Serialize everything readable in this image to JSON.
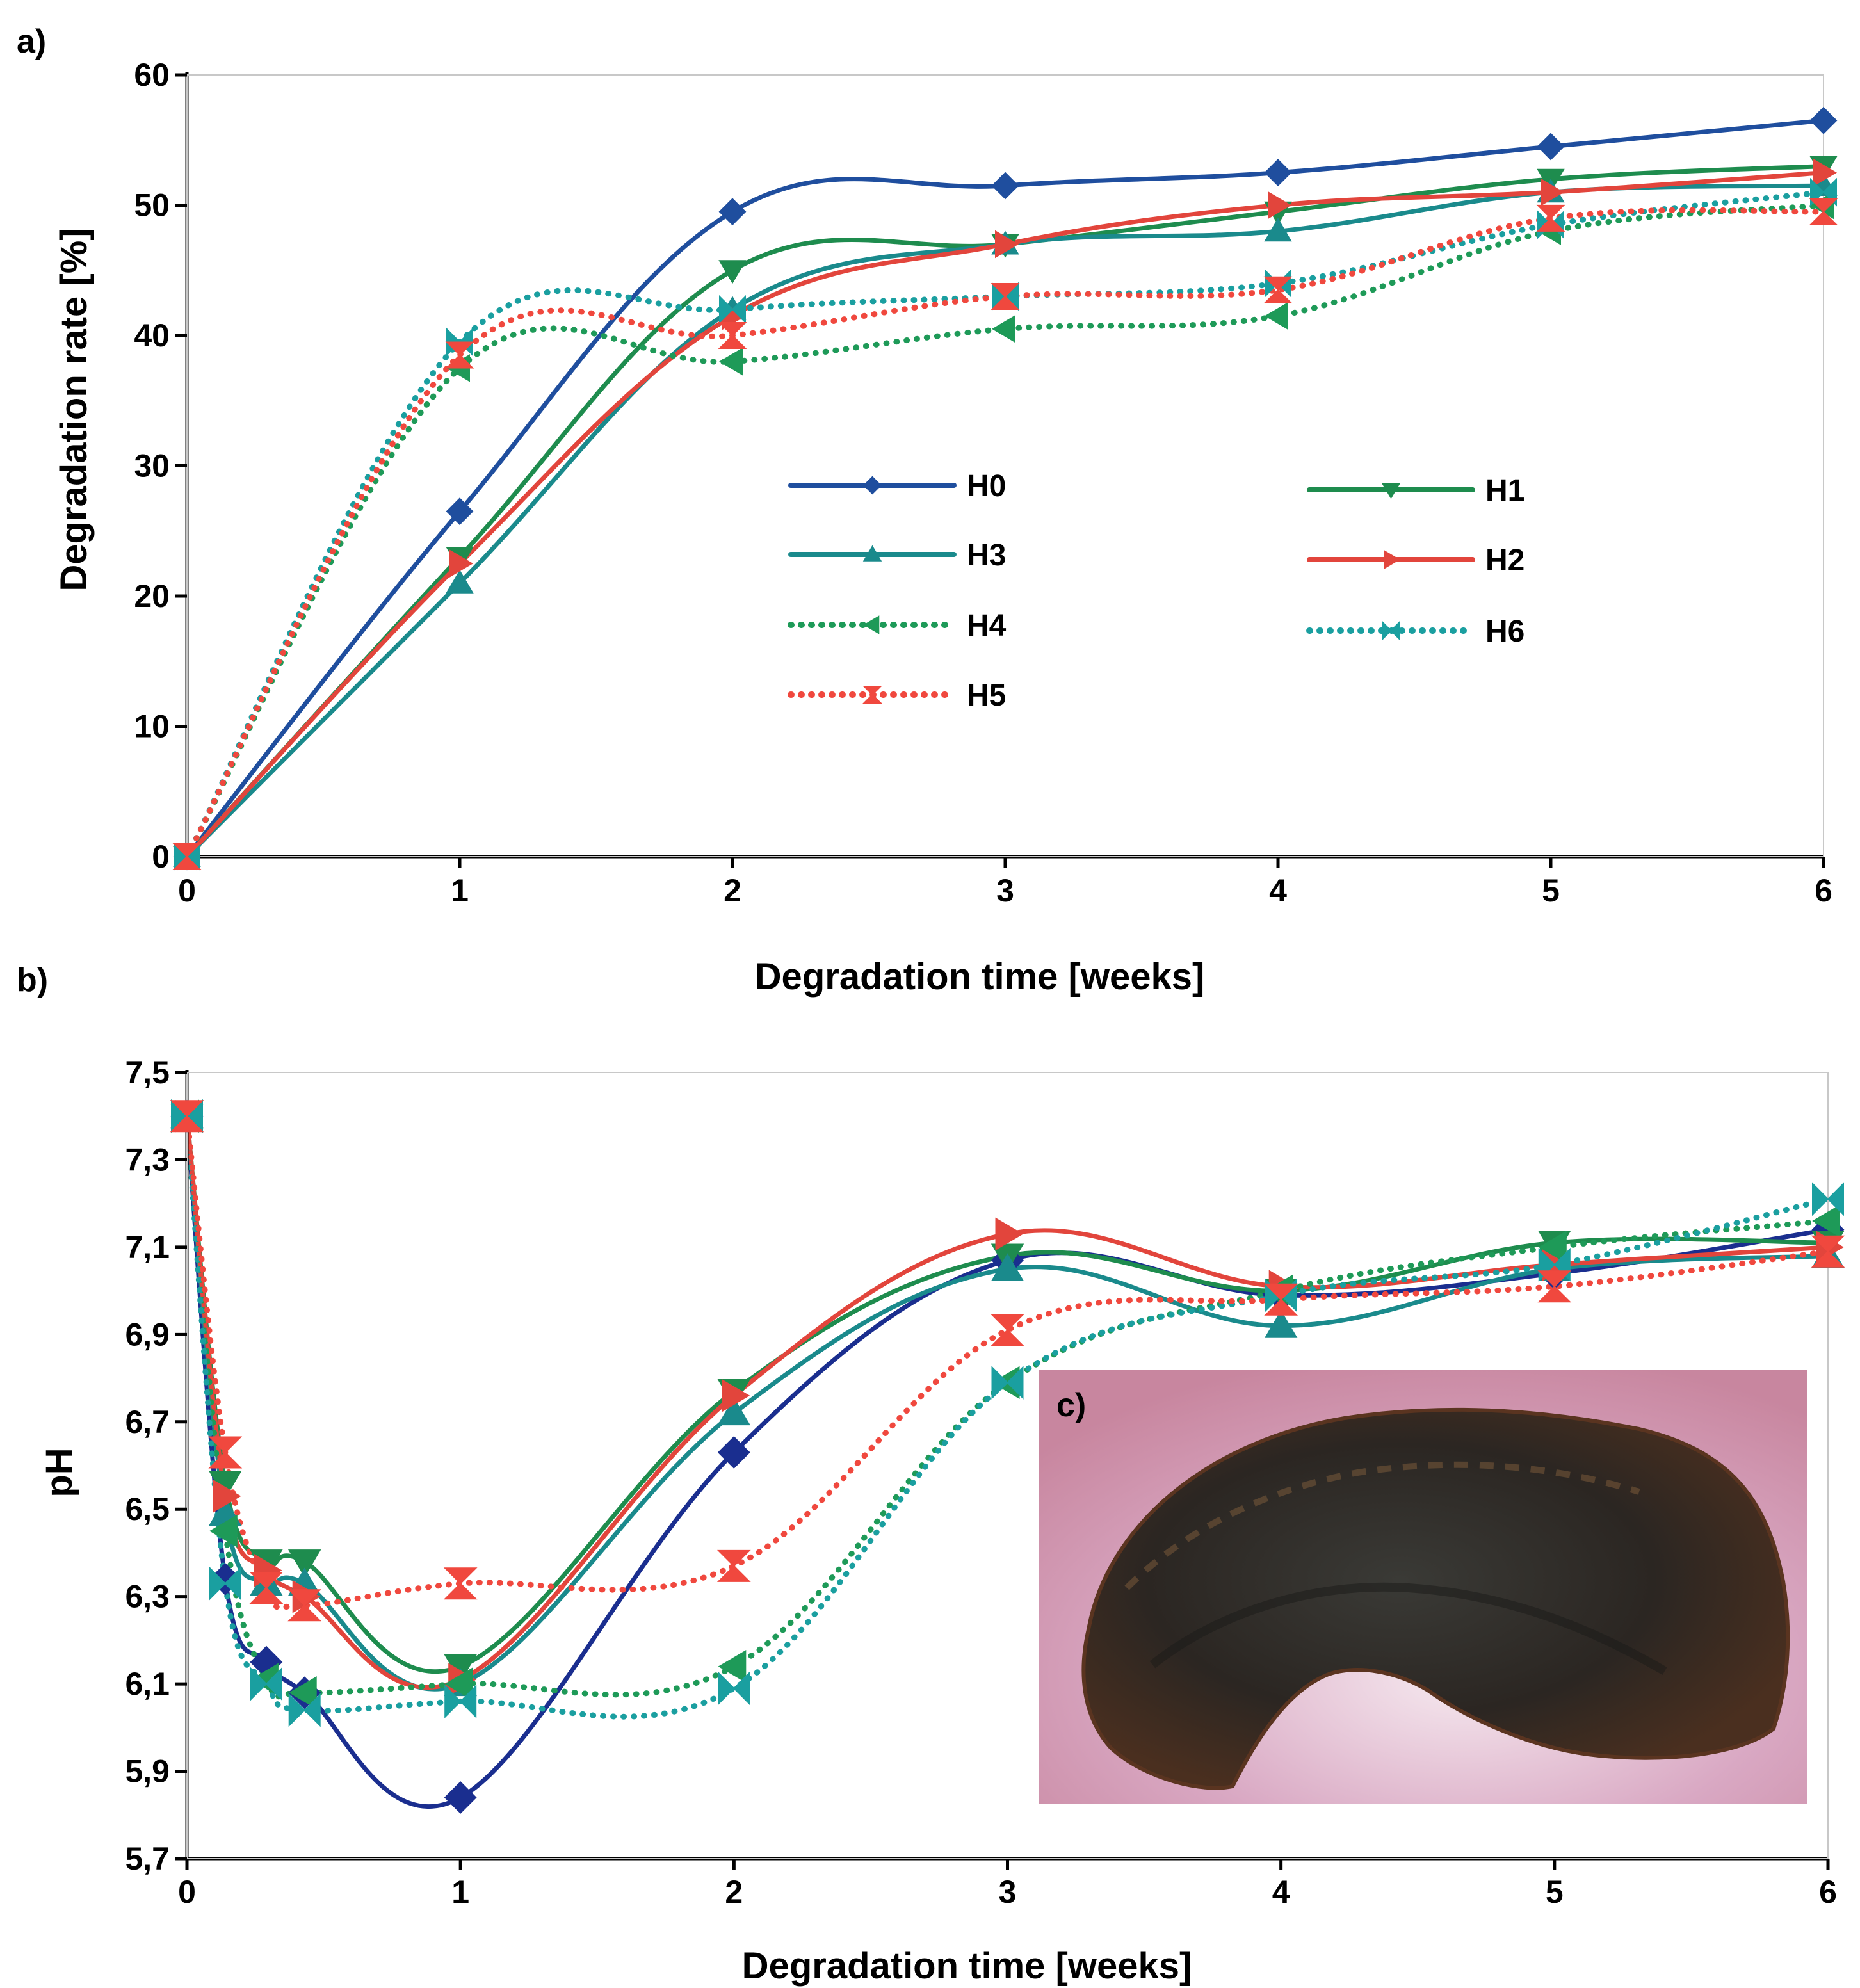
{
  "chart_data": [
    {
      "panel": "a)",
      "type": "line",
      "xlabel": "Degradation time [weeks]",
      "ylabel": "Degradation rate [%]",
      "xlim": [
        0,
        6
      ],
      "ylim": [
        0,
        60
      ],
      "xticks": [
        "0",
        "1",
        "2",
        "3",
        "4",
        "5",
        "6"
      ],
      "yticks": [
        "0",
        "10",
        "20",
        "30",
        "40",
        "50",
        "60"
      ],
      "grid": false,
      "legend": {
        "placement": "center"
      },
      "series": [
        {
          "name": "H0",
          "color": "#1f4e9e",
          "dash": "solid",
          "marker": "diamond",
          "x": [
            0,
            1,
            2,
            3,
            4,
            5,
            6
          ],
          "y": [
            0,
            26.5,
            49.5,
            51.5,
            52.5,
            54.5,
            56.5
          ]
        },
        {
          "name": "H1",
          "color": "#1e8c4e",
          "dash": "solid",
          "marker": "triangle-down",
          "x": [
            0,
            1,
            2,
            3,
            4,
            5,
            6
          ],
          "y": [
            0,
            23,
            45,
            47,
            49.5,
            52,
            53
          ]
        },
        {
          "name": "H3",
          "color": "#1a8a8c",
          "dash": "solid",
          "marker": "triangle-up",
          "x": [
            0,
            1,
            2,
            3,
            4,
            5,
            6
          ],
          "y": [
            0,
            21,
            42,
            47,
            48,
            51,
            51.5
          ]
        },
        {
          "name": "H2",
          "color": "#e2453c",
          "dash": "solid",
          "marker": "triangle-right",
          "x": [
            0,
            1,
            2,
            3,
            4,
            5,
            6
          ],
          "y": [
            0,
            22.5,
            41.5,
            47,
            50,
            51,
            52.5
          ]
        },
        {
          "name": "H4",
          "color": "#1e9a58",
          "dash": "dotted",
          "marker": "triangle-left",
          "x": [
            0,
            1,
            2,
            3,
            4,
            5,
            6
          ],
          "y": [
            0,
            37.5,
            38,
            40.5,
            41.5,
            48,
            50
          ]
        },
        {
          "name": "H6",
          "color": "#1a9fa0",
          "dash": "dotted",
          "marker": "bowtie",
          "x": [
            0,
            1,
            2,
            3,
            4,
            5,
            6
          ],
          "y": [
            0,
            39.5,
            42,
            43,
            44,
            48.5,
            51
          ]
        },
        {
          "name": "H5",
          "color": "#f0483e",
          "dash": "dotted",
          "marker": "hourglass",
          "x": [
            0,
            1,
            2,
            3,
            4,
            5,
            6
          ],
          "y": [
            0,
            38.5,
            40,
            43,
            43.5,
            49,
            49.5
          ]
        }
      ]
    },
    {
      "panel": "b)",
      "type": "line",
      "xlabel": "Degradation time [weeks]",
      "ylabel": "pH",
      "xlim": [
        0,
        6
      ],
      "ylim": [
        5.7,
        7.5
      ],
      "xticks": [
        "0",
        "1",
        "2",
        "3",
        "4",
        "5",
        "6"
      ],
      "yticks": [
        "5,7",
        "5,9",
        "6,1",
        "6,3",
        "6,5",
        "6,7",
        "6,9",
        "7,1",
        "7,3",
        "7,5"
      ],
      "grid": false,
      "inset_label": "c)",
      "series": [
        {
          "name": "H0",
          "color": "#1a2e8f",
          "dash": "solid",
          "marker": "diamond",
          "x": [
            0,
            0.14,
            0.29,
            0.43,
            1,
            2,
            3,
            4,
            5,
            6
          ],
          "y": [
            7.4,
            6.34,
            6.15,
            6.08,
            5.84,
            6.63,
            7.07,
            6.99,
            7.04,
            7.14
          ]
        },
        {
          "name": "H1",
          "color": "#1e8c4e",
          "dash": "solid",
          "marker": "triangle-down",
          "x": [
            0,
            0.14,
            0.29,
            0.43,
            1,
            2,
            3,
            4,
            5,
            6
          ],
          "y": [
            7.4,
            6.56,
            6.38,
            6.38,
            6.14,
            6.77,
            7.08,
            7.0,
            7.11,
            7.11
          ]
        },
        {
          "name": "H3",
          "color": "#1a8a8c",
          "dash": "solid",
          "marker": "triangle-up",
          "x": [
            0,
            0.14,
            0.29,
            0.43,
            1,
            2,
            3,
            4,
            5,
            6
          ],
          "y": [
            7.4,
            6.49,
            6.33,
            6.33,
            6.1,
            6.72,
            7.05,
            6.92,
            7.05,
            7.08
          ]
        },
        {
          "name": "H2",
          "color": "#e2453c",
          "dash": "solid",
          "marker": "triangle-right",
          "x": [
            0,
            0.14,
            0.29,
            0.43,
            1,
            2,
            3,
            4,
            5,
            6
          ],
          "y": [
            7.4,
            6.53,
            6.36,
            6.3,
            6.11,
            6.76,
            7.13,
            7.01,
            7.06,
            7.1
          ]
        },
        {
          "name": "H4",
          "color": "#1e9a58",
          "dash": "dotted",
          "marker": "triangle-left",
          "x": [
            0,
            0.14,
            0.29,
            0.43,
            1,
            2,
            3,
            4,
            5,
            6
          ],
          "y": [
            7.4,
            6.45,
            6.11,
            6.08,
            6.1,
            6.14,
            6.79,
            7.0,
            7.1,
            7.16
          ]
        },
        {
          "name": "H6",
          "color": "#1a9fa0",
          "dash": "dotted",
          "marker": "bowtie",
          "x": [
            0,
            0.14,
            0.29,
            0.43,
            1,
            2,
            3,
            4,
            5,
            6
          ],
          "y": [
            7.4,
            6.33,
            6.1,
            6.04,
            6.06,
            6.09,
            6.79,
            6.99,
            7.06,
            7.21
          ]
        },
        {
          "name": "H5",
          "color": "#f0483e",
          "dash": "dotted",
          "marker": "hourglass",
          "x": [
            0,
            0.14,
            0.29,
            0.43,
            1,
            2,
            3,
            4,
            5,
            6
          ],
          "y": [
            7.4,
            6.63,
            6.32,
            6.28,
            6.33,
            6.37,
            6.91,
            6.98,
            7.01,
            7.09
          ]
        }
      ]
    }
  ]
}
